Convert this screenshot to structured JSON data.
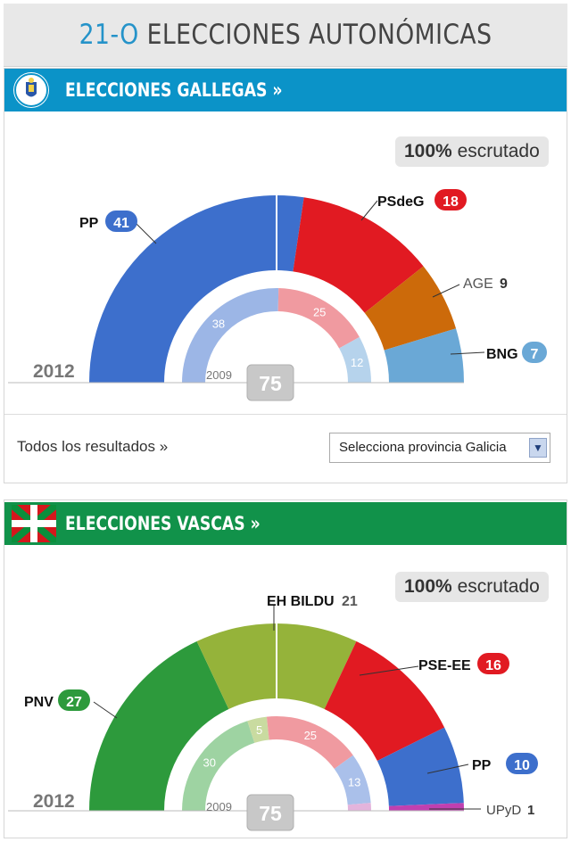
{
  "header": {
    "title_num": "21-O",
    "title_text": "ELECCIONES AUTONÓMICAS"
  },
  "galicia": {
    "banner_label": "ELECCIONES GALLEGAS »",
    "scrutiny_pct": "100%",
    "scrutiny_label": "escrutado",
    "year_current": "2012",
    "year_prev": "2009",
    "majority": "75",
    "results_link": "Todos los resultados »",
    "province_select": "Selecciona provincia Galicia",
    "colors": {
      "banner": "#0b93c8"
    }
  },
  "euskadi": {
    "banner_label": "ELECCIONES VASCAS »",
    "scrutiny_pct": "100%",
    "scrutiny_label": "escrutado",
    "year_current": "2012",
    "year_prev": "2009",
    "majority": "75",
    "colors": {
      "banner": "#11924a"
    }
  },
  "chart_data": [
    {
      "type": "pie",
      "subtype": "semicircle-parliament",
      "region": "Galicia",
      "series": [
        {
          "name": "2012",
          "labels": [
            "PP",
            "PSdeG",
            "AGE",
            "BNG"
          ],
          "values": [
            41,
            18,
            9,
            7
          ],
          "colors": [
            "#3d6fcc",
            "#e11a22",
            "#cc6a0a",
            "#6aa8d6"
          ],
          "badge_colors": [
            "#3d6fcc",
            "#e11a22",
            null,
            "#6aa8d6"
          ]
        },
        {
          "name": "2009",
          "labels": [
            "PP",
            "PSdeG",
            "BNG"
          ],
          "values": [
            38,
            25,
            12
          ],
          "colors": [
            "#9cb6e6",
            "#f09aa0",
            "#b6d3ec"
          ]
        }
      ],
      "majority_seats": 75
    },
    {
      "type": "pie",
      "subtype": "semicircle-parliament",
      "region": "Euskadi",
      "series": [
        {
          "name": "2012",
          "labels": [
            "PNV",
            "EH BILDU",
            "PSE-EE",
            "PP",
            "UPyD"
          ],
          "values": [
            27,
            21,
            16,
            10,
            1
          ],
          "colors": [
            "#2d9a3c",
            "#95b33a",
            "#e11a22",
            "#3d6fcc",
            "#c040b0"
          ],
          "badge_colors": [
            "#2d9a3c",
            null,
            "#e11a22",
            "#3d6fcc",
            null
          ]
        },
        {
          "name": "2009",
          "values": [
            30,
            5,
            25,
            13,
            2
          ],
          "colors": [
            "#9ed3a2",
            "#c9dba0",
            "#f09aa0",
            "#aac0ea",
            "#e3b4dc"
          ],
          "shown_labels": [
            "30",
            "5",
            "25",
            "13"
          ]
        }
      ],
      "majority_seats": 75
    }
  ]
}
